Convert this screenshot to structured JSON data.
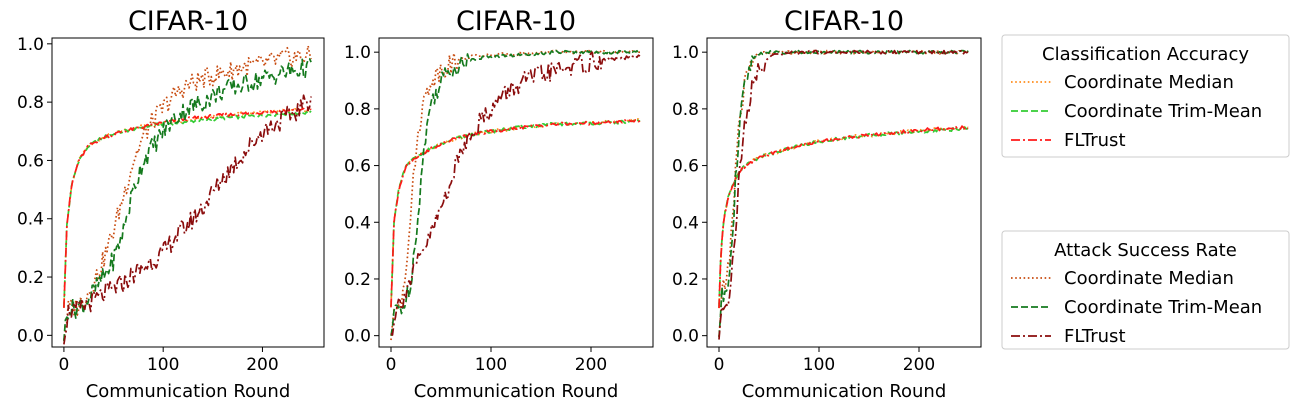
{
  "chart_data": [
    {
      "type": "line",
      "title": "CIFAR-10",
      "xlabel": "Communication Round",
      "ylabel": "",
      "xlim": [
        -12,
        262
      ],
      "ylim": [
        -0.04,
        1.02
      ],
      "xticks": [
        "0",
        "100",
        "200"
      ],
      "yticks": [
        "0.0",
        "0.2",
        "0.4",
        "0.6",
        "0.8",
        "1.0"
      ],
      "series": [
        {
          "name": "Coordinate Median",
          "group": "Classification Accuracy",
          "color": "#ff8c1a",
          "dash": "dotted",
          "x": [
            0,
            3,
            8,
            15,
            25,
            40,
            60,
            80,
            100,
            130,
            160,
            200,
            250
          ],
          "y": [
            0.1,
            0.38,
            0.52,
            0.6,
            0.65,
            0.68,
            0.7,
            0.72,
            0.73,
            0.74,
            0.755,
            0.765,
            0.775
          ]
        },
        {
          "name": "Coordinate Trim-Mean",
          "group": "Classification Accuracy",
          "color": "#33cc33",
          "dash": "dashed",
          "x": [
            0,
            3,
            8,
            15,
            25,
            40,
            60,
            80,
            100,
            130,
            160,
            200,
            250
          ],
          "y": [
            0.1,
            0.38,
            0.52,
            0.6,
            0.65,
            0.68,
            0.7,
            0.715,
            0.725,
            0.735,
            0.745,
            0.755,
            0.765
          ]
        },
        {
          "name": "FLTrust",
          "group": "Classification Accuracy",
          "color": "#ff1a1a",
          "dash": "dashdot",
          "x": [
            0,
            3,
            8,
            15,
            25,
            40,
            60,
            80,
            100,
            130,
            160,
            200,
            250
          ],
          "y": [
            0.1,
            0.38,
            0.52,
            0.6,
            0.65,
            0.68,
            0.7,
            0.715,
            0.73,
            0.745,
            0.755,
            0.765,
            0.775
          ]
        },
        {
          "name": "Coordinate Median",
          "group": "Attack Success Rate",
          "color": "#c84b0f",
          "dash": "dotted",
          "x": [
            0,
            5,
            10,
            20,
            30,
            40,
            50,
            60,
            70,
            80,
            90,
            100,
            110,
            125,
            140,
            160,
            180,
            200,
            220,
            250
          ],
          "y": [
            0.0,
            0.1,
            0.09,
            0.12,
            0.18,
            0.26,
            0.36,
            0.48,
            0.6,
            0.68,
            0.74,
            0.78,
            0.82,
            0.86,
            0.88,
            0.9,
            0.92,
            0.93,
            0.95,
            0.96
          ]
        },
        {
          "name": "Coordinate Trim-Mean",
          "group": "Attack Success Rate",
          "color": "#157a1e",
          "dash": "dashed",
          "x": [
            0,
            5,
            10,
            20,
            30,
            40,
            50,
            60,
            70,
            80,
            90,
            100,
            110,
            125,
            140,
            160,
            180,
            200,
            220,
            250
          ],
          "y": [
            0.0,
            0.1,
            0.09,
            0.11,
            0.15,
            0.2,
            0.26,
            0.36,
            0.5,
            0.6,
            0.65,
            0.7,
            0.74,
            0.78,
            0.8,
            0.84,
            0.86,
            0.88,
            0.9,
            0.92
          ]
        },
        {
          "name": "FLTrust",
          "group": "Attack Success Rate",
          "color": "#8b0d0d",
          "dash": "dashdot",
          "x": [
            0,
            5,
            10,
            20,
            30,
            40,
            50,
            60,
            70,
            80,
            90,
            100,
            110,
            125,
            140,
            160,
            180,
            200,
            220,
            235,
            250
          ],
          "y": [
            0.0,
            0.09,
            0.08,
            0.1,
            0.12,
            0.14,
            0.16,
            0.18,
            0.21,
            0.23,
            0.26,
            0.28,
            0.33,
            0.38,
            0.44,
            0.54,
            0.62,
            0.7,
            0.74,
            0.77,
            0.82
          ]
        }
      ]
    },
    {
      "type": "line",
      "title": "CIFAR-10",
      "xlabel": "Communication Round",
      "ylabel": "",
      "xlim": [
        -12,
        262
      ],
      "ylim": [
        -0.04,
        1.05
      ],
      "xticks": [
        "0",
        "100",
        "200"
      ],
      "yticks": [
        "0.0",
        "0.2",
        "0.4",
        "0.6",
        "0.8",
        "1.0"
      ],
      "series": [
        {
          "name": "Coordinate Median",
          "group": "Classification Accuracy",
          "color": "#ff8c1a",
          "dash": "dotted",
          "x": [
            0,
            3,
            8,
            15,
            25,
            40,
            60,
            80,
            100,
            130,
            160,
            200,
            250
          ],
          "y": [
            0.1,
            0.4,
            0.52,
            0.6,
            0.63,
            0.66,
            0.69,
            0.71,
            0.72,
            0.735,
            0.745,
            0.75,
            0.76
          ]
        },
        {
          "name": "Coordinate Trim-Mean",
          "group": "Classification Accuracy",
          "color": "#33cc33",
          "dash": "dashed",
          "x": [
            0,
            3,
            8,
            15,
            25,
            40,
            60,
            80,
            100,
            130,
            160,
            200,
            250
          ],
          "y": [
            0.1,
            0.4,
            0.52,
            0.6,
            0.63,
            0.66,
            0.69,
            0.71,
            0.72,
            0.735,
            0.745,
            0.75,
            0.755
          ]
        },
        {
          "name": "FLTrust",
          "group": "Classification Accuracy",
          "color": "#ff1a1a",
          "dash": "dashdot",
          "x": [
            0,
            3,
            8,
            15,
            25,
            40,
            60,
            80,
            100,
            130,
            160,
            200,
            250
          ],
          "y": [
            0.1,
            0.4,
            0.52,
            0.6,
            0.63,
            0.66,
            0.69,
            0.71,
            0.72,
            0.735,
            0.745,
            0.75,
            0.76
          ]
        },
        {
          "name": "Coordinate Median",
          "group": "Attack Success Rate",
          "color": "#c84b0f",
          "dash": "dotted",
          "x": [
            0,
            5,
            10,
            15,
            20,
            25,
            30,
            35,
            40,
            50,
            60,
            70,
            80,
            100,
            130,
            160,
            200,
            250
          ],
          "y": [
            0.0,
            0.1,
            0.12,
            0.25,
            0.45,
            0.65,
            0.78,
            0.85,
            0.9,
            0.94,
            0.96,
            0.975,
            0.985,
            0.99,
            0.995,
            1.0,
            1.0,
            1.0
          ]
        },
        {
          "name": "Coordinate Trim-Mean",
          "group": "Attack Success Rate",
          "color": "#157a1e",
          "dash": "dashed",
          "x": [
            0,
            5,
            10,
            15,
            20,
            25,
            30,
            35,
            40,
            50,
            60,
            70,
            80,
            100,
            130,
            160,
            200,
            250
          ],
          "y": [
            0.0,
            0.1,
            0.1,
            0.12,
            0.2,
            0.35,
            0.55,
            0.72,
            0.82,
            0.9,
            0.94,
            0.96,
            0.975,
            0.985,
            0.99,
            1.0,
            1.0,
            1.0
          ]
        },
        {
          "name": "FLTrust",
          "group": "Attack Success Rate",
          "color": "#8b0d0d",
          "dash": "dashdot",
          "x": [
            0,
            5,
            10,
            20,
            30,
            40,
            50,
            60,
            70,
            80,
            90,
            100,
            110,
            125,
            140,
            160,
            180,
            200,
            220,
            250
          ],
          "y": [
            0.0,
            0.1,
            0.12,
            0.2,
            0.28,
            0.36,
            0.45,
            0.55,
            0.65,
            0.72,
            0.76,
            0.8,
            0.84,
            0.88,
            0.91,
            0.93,
            0.95,
            0.965,
            0.975,
            0.985
          ]
        }
      ]
    },
    {
      "type": "line",
      "title": "CIFAR-10",
      "xlabel": "Communication Round",
      "ylabel": "",
      "xlim": [
        -12,
        262
      ],
      "ylim": [
        -0.04,
        1.05
      ],
      "xticks": [
        "0",
        "100",
        "200"
      ],
      "yticks": [
        "0.0",
        "0.2",
        "0.4",
        "0.6",
        "0.8",
        "1.0"
      ],
      "series": [
        {
          "name": "Coordinate Median",
          "group": "Classification Accuracy",
          "color": "#ff8c1a",
          "dash": "dotted",
          "x": [
            0,
            2,
            5,
            10,
            20,
            30,
            45,
            60,
            80,
            100,
            130,
            160,
            200,
            250
          ],
          "y": [
            0.1,
            0.3,
            0.42,
            0.5,
            0.58,
            0.61,
            0.635,
            0.65,
            0.67,
            0.685,
            0.7,
            0.71,
            0.725,
            0.735
          ]
        },
        {
          "name": "Coordinate Trim-Mean",
          "group": "Classification Accuracy",
          "color": "#33cc33",
          "dash": "dashed",
          "x": [
            0,
            2,
            5,
            10,
            20,
            30,
            45,
            60,
            80,
            100,
            130,
            160,
            200,
            250
          ],
          "y": [
            0.1,
            0.3,
            0.42,
            0.5,
            0.58,
            0.61,
            0.635,
            0.65,
            0.67,
            0.685,
            0.7,
            0.71,
            0.72,
            0.73
          ]
        },
        {
          "name": "FLTrust",
          "group": "Classification Accuracy",
          "color": "#ff1a1a",
          "dash": "dashdot",
          "x": [
            0,
            2,
            5,
            10,
            20,
            30,
            45,
            60,
            80,
            100,
            130,
            160,
            200,
            250
          ],
          "y": [
            0.1,
            0.3,
            0.42,
            0.5,
            0.58,
            0.61,
            0.635,
            0.65,
            0.67,
            0.685,
            0.7,
            0.71,
            0.725,
            0.735
          ]
        },
        {
          "name": "Coordinate Median",
          "group": "Attack Success Rate",
          "color": "#c84b0f",
          "dash": "dotted",
          "x": [
            0,
            3,
            6,
            10,
            14,
            18,
            22,
            26,
            30,
            35,
            40,
            50,
            60,
            100,
            250
          ],
          "y": [
            0.0,
            0.15,
            0.18,
            0.25,
            0.45,
            0.65,
            0.8,
            0.9,
            0.95,
            0.98,
            0.995,
            1.0,
            1.0,
            1.0,
            1.0
          ]
        },
        {
          "name": "Coordinate Trim-Mean",
          "group": "Attack Success Rate",
          "color": "#157a1e",
          "dash": "dashed",
          "x": [
            0,
            3,
            6,
            10,
            14,
            18,
            22,
            26,
            30,
            35,
            40,
            50,
            60,
            100,
            250
          ],
          "y": [
            0.0,
            0.14,
            0.16,
            0.22,
            0.4,
            0.62,
            0.78,
            0.88,
            0.94,
            0.98,
            0.995,
            1.0,
            1.0,
            1.0,
            1.0
          ]
        },
        {
          "name": "FLTrust",
          "group": "Attack Success Rate",
          "color": "#8b0d0d",
          "dash": "dashdot",
          "x": [
            0,
            3,
            6,
            10,
            15,
            20,
            25,
            30,
            35,
            40,
            50,
            60,
            70,
            80,
            100,
            250
          ],
          "y": [
            0.0,
            0.1,
            0.12,
            0.14,
            0.3,
            0.55,
            0.72,
            0.82,
            0.9,
            0.95,
            0.98,
            0.995,
            1.0,
            1.0,
            1.0,
            1.0
          ]
        }
      ]
    }
  ],
  "legends": [
    {
      "title": "Classification Accuracy",
      "entries": [
        {
          "label": "Coordinate Median",
          "color": "#ff8c1a",
          "dash": "dotted"
        },
        {
          "label": "Coordinate Trim-Mean",
          "color": "#33cc33",
          "dash": "dashed"
        },
        {
          "label": "FLTrust",
          "color": "#ff1a1a",
          "dash": "dashdot"
        }
      ]
    },
    {
      "title": "Attack Success Rate",
      "entries": [
        {
          "label": "Coordinate Median",
          "color": "#c84b0f",
          "dash": "dotted"
        },
        {
          "label": "Coordinate Trim-Mean",
          "color": "#157a1e",
          "dash": "dashed"
        },
        {
          "label": "FLTrust",
          "color": "#8b0d0d",
          "dash": "dashdot"
        }
      ]
    }
  ]
}
